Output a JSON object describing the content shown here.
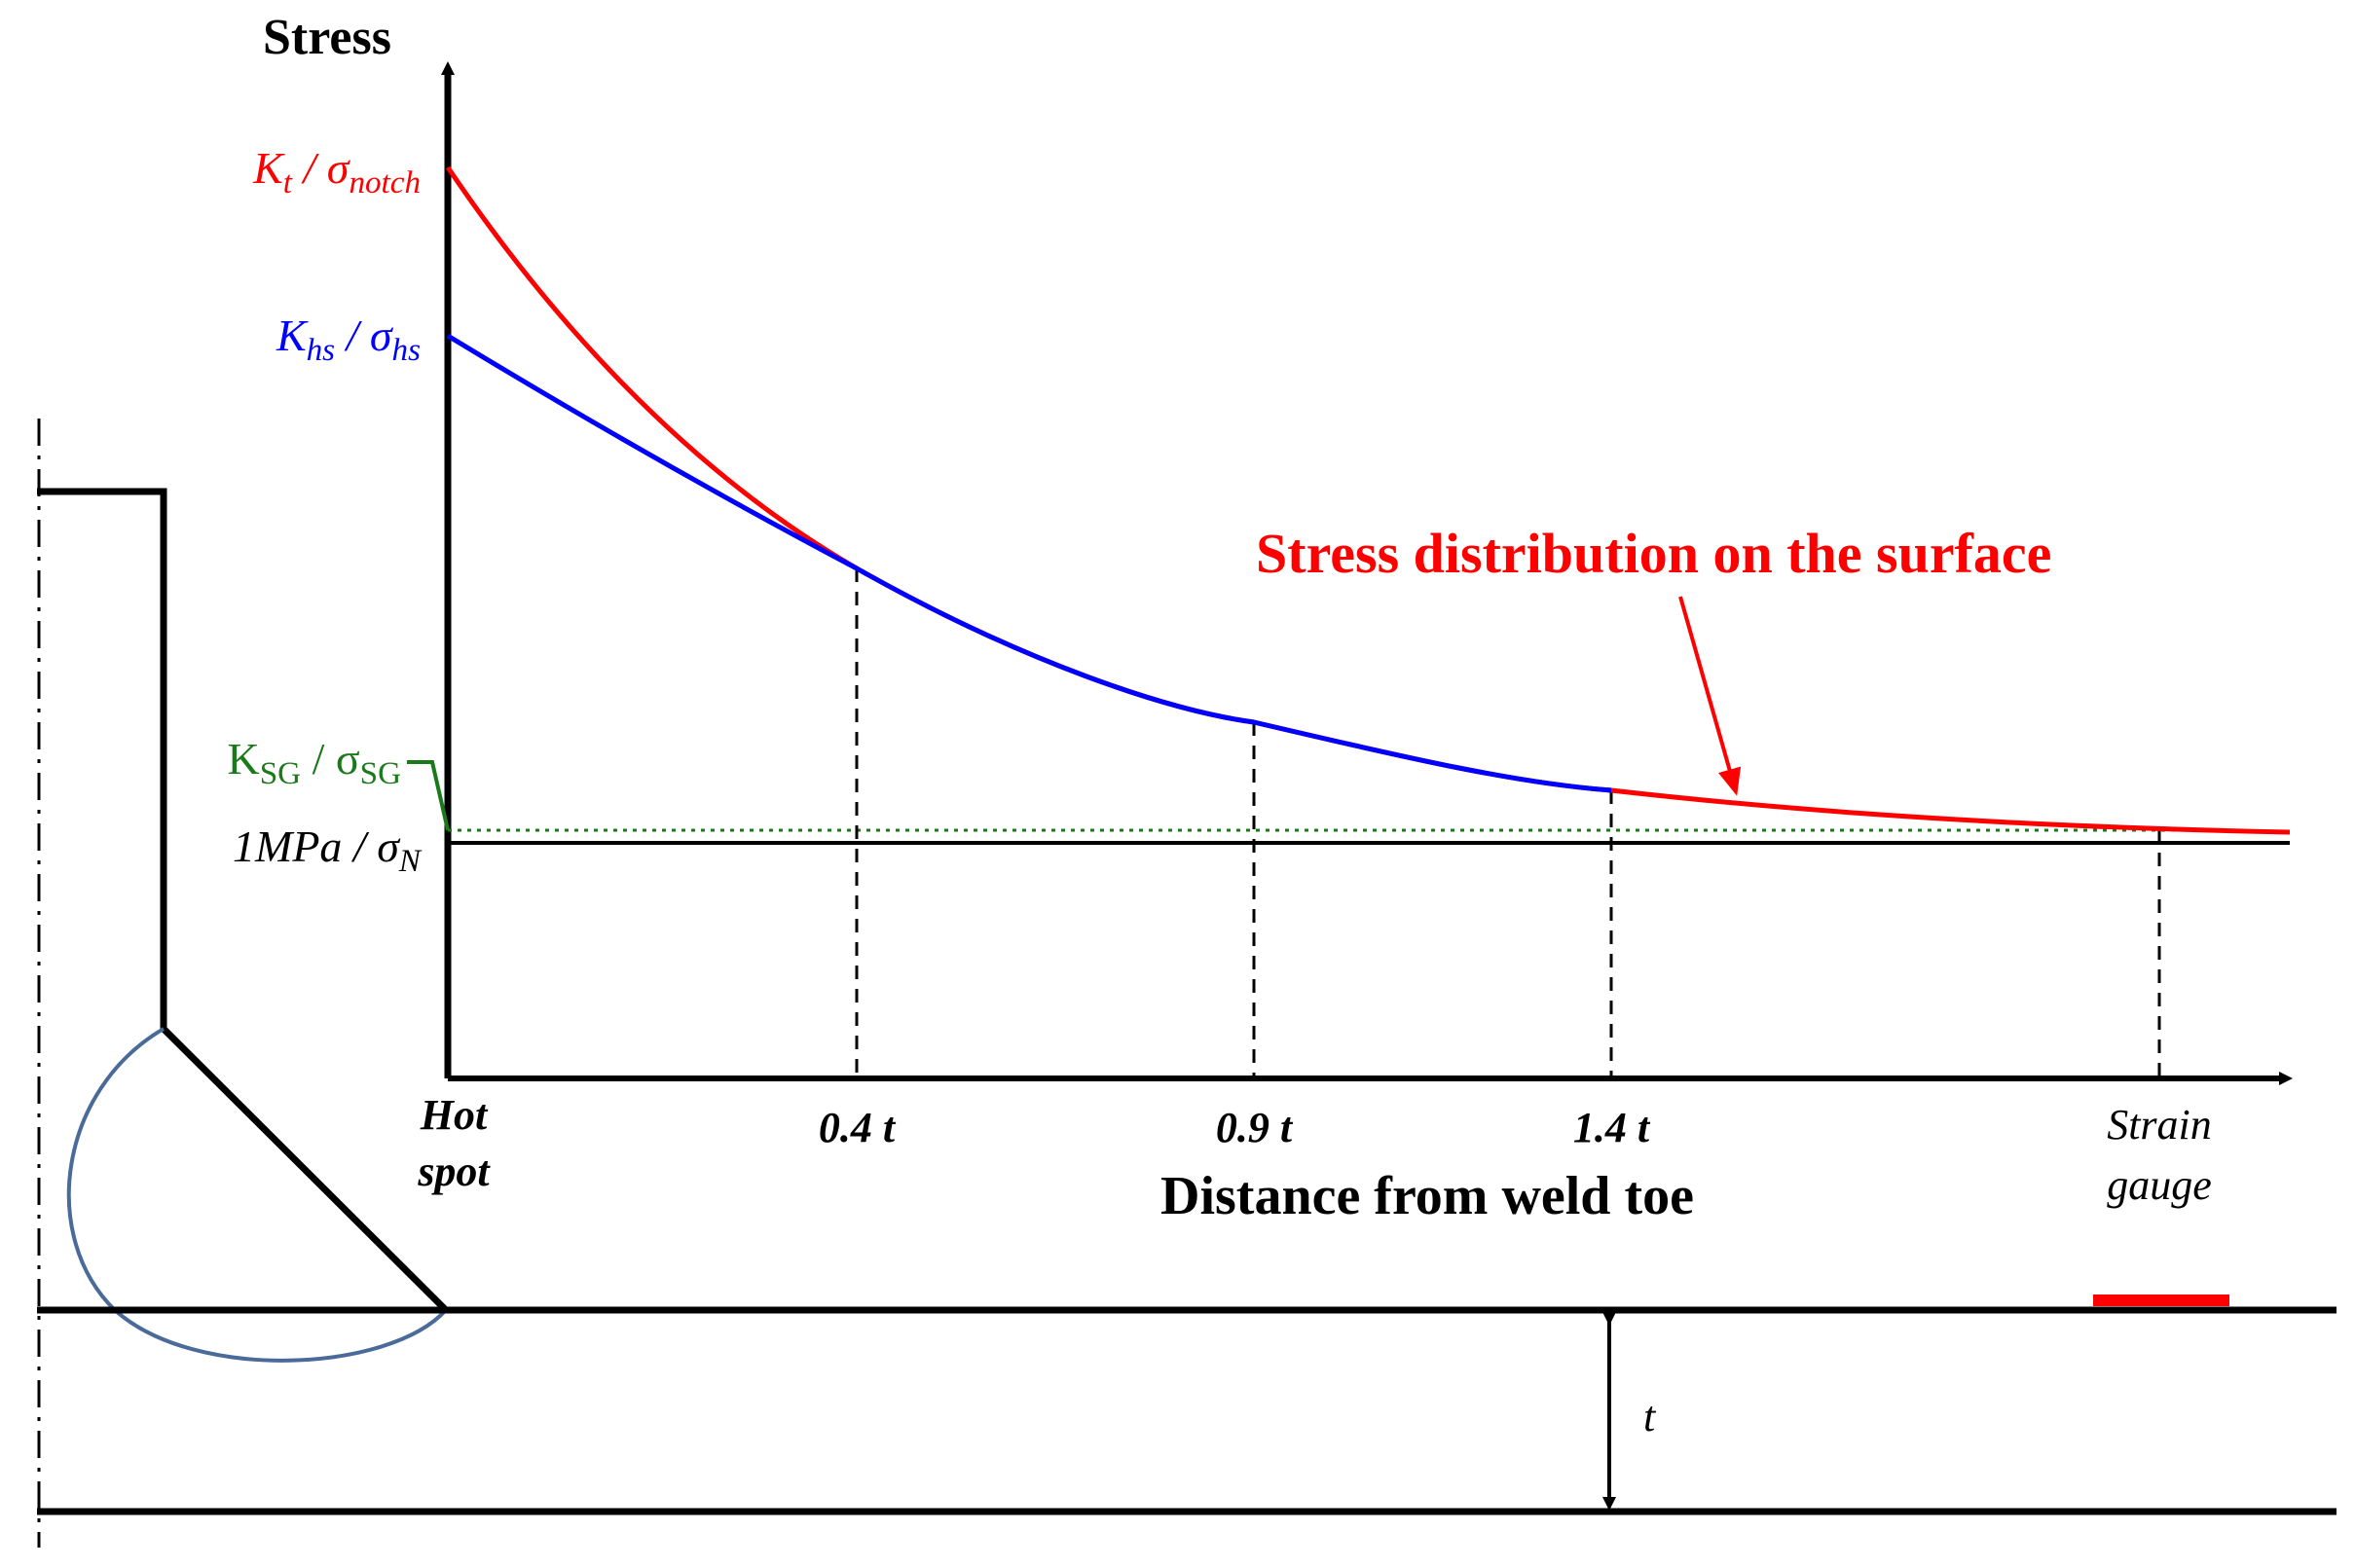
{
  "axes": {
    "y_title": "Stress",
    "x_title": "Distance from weld toe"
  },
  "x_ticks": {
    "hot_spot_line1": "Hot",
    "hot_spot_line2": "spot",
    "t04": "0.4 t",
    "t09": "0.9 t",
    "t14": "1.4 t",
    "strain_line1": "Strain",
    "strain_line2": "gauge"
  },
  "y_labels": {
    "kt": {
      "k": "K",
      "k_sub": "t",
      "sep": " / ",
      "sigma": "σ",
      "sigma_sub": "notch"
    },
    "khs": {
      "k": "K",
      "k_sub": "hs",
      "sep": " / ",
      "sigma": "σ",
      "sigma_sub": "hs"
    },
    "ksg": {
      "k": "K",
      "k_sub": "SG",
      "sep": " / ",
      "sigma": "σ",
      "sigma_sub": "SG"
    },
    "nominal": {
      "prefix": "1MPa",
      "sep": " / ",
      "sigma": "σ",
      "sigma_sub": "N"
    }
  },
  "annotation": {
    "curve_label": "Stress distribution on the surface"
  },
  "plate": {
    "thickness_label": "t"
  },
  "colors": {
    "notch_curve": "#ff0000",
    "hotspot_curve": "#0000ff",
    "strain_gauge_line": "#1a7a1a",
    "weld_bead": "#4a6a9a",
    "axis": "#000000"
  }
}
